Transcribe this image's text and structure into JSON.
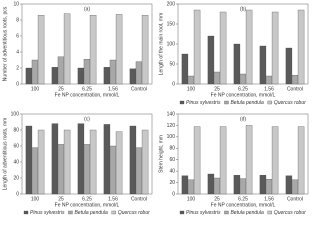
{
  "chart_data": [
    {
      "type": "bar",
      "panel_label": "(a)",
      "y_label": "Number of adventitious roots, pcs",
      "x_label": "Fe NP concentration, mmol/L",
      "categories": [
        "100",
        "25",
        "6.25",
        "1.56",
        "Control"
      ],
      "ylim": [
        0,
        10
      ],
      "yticks": [
        0,
        2,
        4,
        6,
        8,
        10
      ],
      "legend": false,
      "series": [
        {
          "color": "#5a5a5a",
          "values": [
            2.0,
            2.1,
            2.0,
            2.1,
            1.9
          ]
        },
        {
          "color": "#a8a8a8",
          "values": [
            3.0,
            3.4,
            3.1,
            3.0,
            2.8
          ]
        },
        {
          "color": "#c8c8c8",
          "values": [
            8.6,
            8.8,
            8.6,
            8.7,
            8.6
          ]
        }
      ]
    },
    {
      "type": "bar",
      "panel_label": "(b)",
      "y_label": "Length of the main root, mm",
      "x_label": "Fe NP concentration, mmol/L",
      "categories": [
        "100",
        "25",
        "6.25",
        "1.56",
        "Control"
      ],
      "ylim": [
        0,
        200
      ],
      "yticks": [
        0,
        50,
        100,
        150,
        200
      ],
      "legend": true,
      "series": [
        {
          "name": "Pinus sylvestris",
          "color": "#5a5a5a",
          "values": [
            75,
            120,
            100,
            95,
            90
          ]
        },
        {
          "name": "Betula pendula",
          "color": "#a8a8a8",
          "values": [
            20,
            30,
            25,
            20,
            22
          ]
        },
        {
          "name": "Quercus robur",
          "color": "#c8c8c8",
          "values": [
            185,
            180,
            185,
            180,
            185
          ]
        }
      ]
    },
    {
      "type": "bar",
      "panel_label": "(c)",
      "y_label": "Length of adventitious roots, mm",
      "x_label": "Fe NP concentration, mmol/L",
      "categories": [
        "100",
        "25",
        "6.25",
        "1.56",
        "Control"
      ],
      "ylim": [
        0,
        100
      ],
      "yticks": [
        0,
        20,
        40,
        60,
        80,
        100
      ],
      "legend": true,
      "series": [
        {
          "name": "Pinus sylvestris",
          "color": "#5a5a5a",
          "values": [
            85,
            88,
            88,
            87,
            85
          ]
        },
        {
          "name": "Betula pendula",
          "color": "#a8a8a8",
          "values": [
            58,
            62,
            62,
            60,
            58
          ]
        },
        {
          "name": "Quercus robur",
          "color": "#c8c8c8",
          "values": [
            80,
            80,
            80,
            78,
            80
          ]
        }
      ]
    },
    {
      "type": "bar",
      "panel_label": "(d)",
      "y_label": "Stem height, mm",
      "x_label": "Fe NP concentration, mmol/L",
      "categories": [
        "100",
        "25",
        "6.25",
        "1.56",
        "Control"
      ],
      "ylim": [
        0,
        140
      ],
      "yticks": [
        0,
        20,
        40,
        60,
        80,
        100,
        120,
        140
      ],
      "legend": true,
      "series": [
        {
          "name": "Pinus sylvestris",
          "color": "#5a5a5a",
          "values": [
            32,
            35,
            33,
            33,
            32
          ]
        },
        {
          "name": "Betula pendula",
          "color": "#a8a8a8",
          "values": [
            25,
            28,
            27,
            26,
            25
          ]
        },
        {
          "name": "Quercus robur",
          "color": "#c8c8c8",
          "values": [
            118,
            118,
            120,
            118,
            118
          ]
        }
      ]
    }
  ]
}
